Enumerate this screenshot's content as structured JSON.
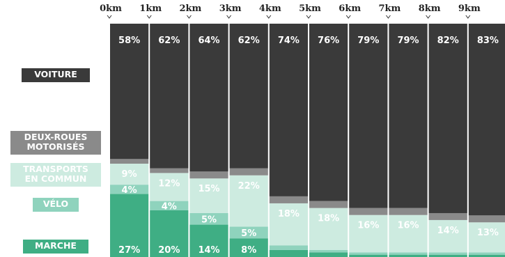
{
  "chart_data": {
    "type": "bar",
    "stacked": true,
    "normalized": true,
    "categories": [
      "0 km",
      "1 km",
      "2 km",
      "3 km",
      "4 km",
      "5 km",
      "6 km",
      "7 km",
      "8 km",
      "9 km"
    ],
    "series": [
      {
        "name": "MARCHE",
        "color": "#3fae84",
        "values": [
          27,
          20,
          14,
          8,
          3,
          2,
          1,
          1,
          1,
          1
        ],
        "labels": [
          "27%",
          "20%",
          "14%",
          "8%",
          "",
          "",
          "",
          "",
          "",
          ""
        ]
      },
      {
        "name": "VÉLO",
        "color": "#8fd3bd",
        "values": [
          4,
          4,
          5,
          5,
          2,
          1,
          1,
          1,
          1,
          1
        ],
        "labels": [
          "4%",
          "4%",
          "5%",
          "5%",
          "",
          "",
          "",
          "",
          "",
          ""
        ]
      },
      {
        "name": "TRANSPORTS EN COMMUN",
        "color": "#cdebe0",
        "values": [
          9,
          12,
          15,
          22,
          18,
          18,
          16,
          16,
          14,
          13
        ],
        "labels": [
          "9%",
          "12%",
          "15%",
          "22%",
          "18%",
          "18%",
          "16%",
          "16%",
          "14%",
          "13%"
        ]
      },
      {
        "name": "DEUX-ROUES MOTORISÉS",
        "color": "#8a8a8a",
        "values": [
          2,
          2,
          3,
          3,
          3,
          3,
          3,
          3,
          3,
          3
        ],
        "labels": [
          "2%",
          "2%",
          "3%",
          "3%",
          "3%",
          "3%",
          "3%",
          "3%",
          "3%",
          "3%"
        ]
      },
      {
        "name": "VOITURE",
        "color": "#3a3a3a",
        "values": [
          58,
          62,
          64,
          62,
          74,
          76,
          79,
          79,
          82,
          83
        ],
        "labels": [
          "58%",
          "62%",
          "64%",
          "62%",
          "74%",
          "76%",
          "79%",
          "79%",
          "82%",
          "83%"
        ]
      }
    ],
    "legend_position": "left"
  }
}
